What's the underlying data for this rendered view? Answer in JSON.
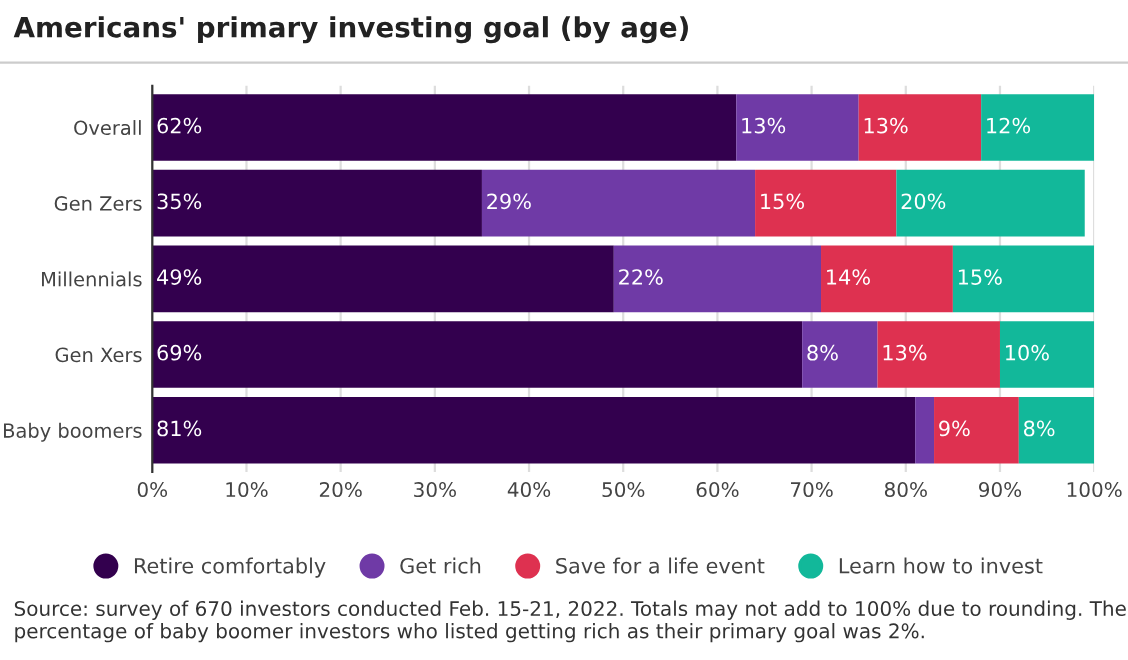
{
  "chart_data": {
    "type": "bar",
    "orientation": "horizontal",
    "stacked": true,
    "title": "Americans' primary investing goal (by age)",
    "categories": [
      "Overall",
      "Gen Zers",
      "Millennials",
      "Gen Xers",
      "Baby boomers"
    ],
    "series": [
      {
        "name": "Retire comfortably",
        "color": "#33004e",
        "values": [
          62,
          35,
          49,
          69,
          81
        ],
        "value_labels": [
          "62%",
          "35%",
          "49%",
          "69%",
          "81%"
        ]
      },
      {
        "name": "Get rich",
        "color": "#6f3aa6",
        "values": [
          13,
          29,
          22,
          8,
          2
        ],
        "value_labels": [
          "13%",
          "29%",
          "22%",
          "8%",
          null
        ]
      },
      {
        "name": "Save for a life event",
        "color": "#de3150",
        "values": [
          13,
          15,
          14,
          13,
          9
        ],
        "value_labels": [
          "13%",
          "15%",
          "14%",
          "13%",
          "9%"
        ]
      },
      {
        "name": "Learn how to invest",
        "color": "#12b89a",
        "values": [
          12,
          20,
          15,
          10,
          8
        ],
        "value_labels": [
          "12%",
          "20%",
          "15%",
          "10%",
          "8%"
        ]
      }
    ],
    "xlim": [
      0,
      100
    ],
    "xticks": [
      {
        "value": 0,
        "label": "0%"
      },
      {
        "value": 10,
        "label": "10%"
      },
      {
        "value": 20,
        "label": "20%"
      },
      {
        "value": 30,
        "label": "30%"
      },
      {
        "value": 40,
        "label": "40%"
      },
      {
        "value": 50,
        "label": "50%"
      },
      {
        "value": 60,
        "label": "60%"
      },
      {
        "value": 70,
        "label": "70%"
      },
      {
        "value": 80,
        "label": "80%"
      },
      {
        "value": 90,
        "label": "90%"
      },
      {
        "value": 100,
        "label": "100%"
      }
    ],
    "grid": "x",
    "legend": "bottom",
    "annotations": [
      "Source: survey of 670 investors conducted Feb. 15-21, 2022. Totals may not add to 100% due to rounding. The percentage of baby boomer investors who listed getting rich as their primary goal was 2%."
    ]
  }
}
